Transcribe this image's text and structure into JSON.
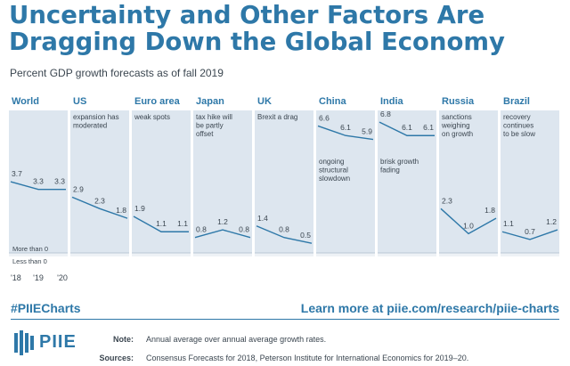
{
  "title": "Uncertainty and Other Factors Are Dragging Down the Global Economy",
  "subtitle": "Percent GDP growth forecasts as of fall 2019",
  "footer": {
    "hashtag": "#PIIECharts",
    "learn_more": "Learn more at piie.com/research/piie-charts",
    "logo_text": "PIIE",
    "note_label": "Note:",
    "note_text": "Annual average over annual average growth rates.",
    "sources_label": "Sources:",
    "sources_text": "Consensus Forecasts for 2018, Peterson Institute for International Economics for 2019–20."
  },
  "colors": {
    "title": "#2e78a8",
    "panel_fill": "#dde6ef",
    "line": "#2e78a8",
    "text": "#3b4650"
  },
  "chart_data": {
    "type": "line",
    "x": [
      "'18",
      "'19",
      "'20"
    ],
    "zero_labels": {
      "above": "More than 0",
      "below": "Less than 0"
    },
    "panels": [
      {
        "name": "World",
        "values": [
          3.7,
          3.3,
          3.3
        ],
        "annotation": []
      },
      {
        "name": "US",
        "values": [
          2.9,
          2.3,
          1.8
        ],
        "annotation": [
          "expansion has",
          "moderated"
        ]
      },
      {
        "name": "Euro area",
        "values": [
          1.9,
          1.1,
          1.1
        ],
        "annotation": [
          "weak spots"
        ]
      },
      {
        "name": "Japan",
        "values": [
          0.8,
          1.2,
          0.8
        ],
        "annotation": [
          "tax hike will",
          "be partly",
          "offset"
        ]
      },
      {
        "name": "UK",
        "values": [
          1.4,
          0.8,
          0.5
        ],
        "annotation": [
          "Brexit a drag"
        ]
      },
      {
        "name": "China",
        "values": [
          6.6,
          6.1,
          5.9
        ],
        "annotation": [
          "ongoing",
          "structural",
          "slowdown"
        ]
      },
      {
        "name": "India",
        "values": [
          6.8,
          6.1,
          6.1
        ],
        "annotation": [
          "brisk growth",
          "fading"
        ]
      },
      {
        "name": "Russia",
        "values": [
          2.3,
          1.0,
          1.8
        ],
        "annotation": [
          "sanctions",
          "weighing",
          "on growth"
        ]
      },
      {
        "name": "Brazil",
        "values": [
          1.1,
          0.7,
          1.2
        ],
        "annotation": [
          "recovery",
          "continues",
          "to be slow"
        ]
      }
    ]
  }
}
